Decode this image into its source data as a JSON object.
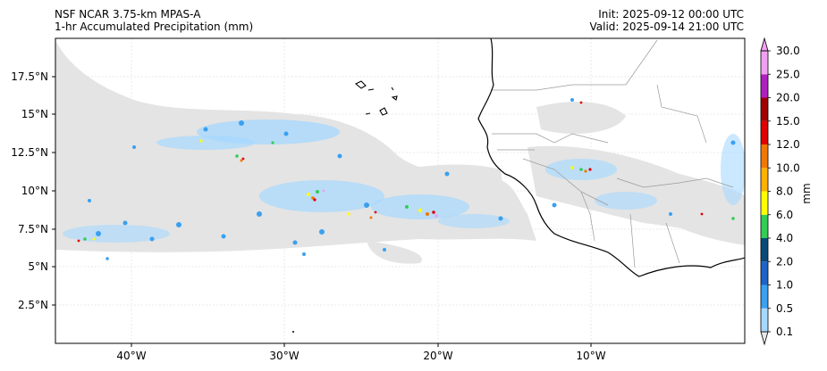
{
  "header": {
    "title": "NSF NCAR 3.75-km MPAS-A",
    "subtitle": "1-hr Accumulated Precipitation (mm)",
    "init": "Init: 2025-09-12 00:00 UTC",
    "valid": "Valid: 2025-09-14 21:00 UTC"
  },
  "axes": {
    "lat_labels": [
      "17.5°N",
      "15°N",
      "12.5°N",
      "10°N",
      "7.5°N",
      "5°N",
      "2.5°N"
    ],
    "lon_labels": [
      "40°W",
      "30°W",
      "20°W",
      "10°W"
    ]
  },
  "colorbar": {
    "label": "mm",
    "levels": [
      "0.1",
      "0.5",
      "1.0",
      "2.0",
      "4.0",
      "6.0",
      "8.0",
      "10.0",
      "12.0",
      "15.0",
      "20.0",
      "25.0",
      "30.0"
    ],
    "colors": [
      "#e6e6e6",
      "#a6d8ff",
      "#3aa0f0",
      "#1e64c8",
      "#0a4a78",
      "#33cc55",
      "#ffff00",
      "#ffb000",
      "#f07800",
      "#e00000",
      "#a00000",
      "#b020c0",
      "#f0a0f0"
    ]
  },
  "colors": {
    "frame": "#000000",
    "coast": "#000000",
    "border": "#9a9a9a"
  }
}
